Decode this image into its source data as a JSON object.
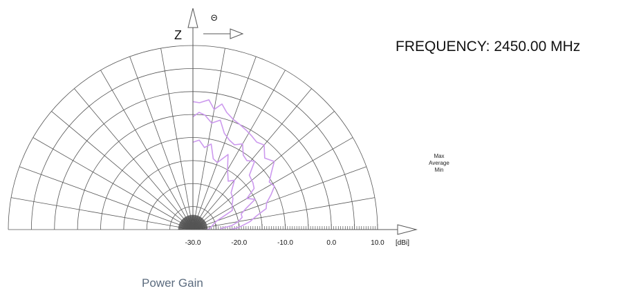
{
  "frequency_label": "FREQUENCY: 2450.00 MHz",
  "legend": [
    "Max",
    "Average",
    "Min"
  ],
  "caption": "Power Gain",
  "axis_labels": {
    "vertical": "Z",
    "angular": "Θ"
  },
  "colors": {
    "series": "#cc99ee",
    "grid": "#555555"
  },
  "chart_data": {
    "type": "line",
    "subtype": "polar-half",
    "title": "FREQUENCY: 2450.00 MHz",
    "radial_unit": "[dBi]",
    "radial_range": [
      -30,
      10
    ],
    "radial_ticks": [
      {
        "value": -30,
        "label": "-30.0"
      },
      {
        "value": -20,
        "label": "-20.0"
      },
      {
        "value": -10,
        "label": "-10.0"
      },
      {
        "value": 0,
        "label": "0.0"
      },
      {
        "value": 10,
        "label": "10.0"
      }
    ],
    "theta_range_deg": [
      0,
      90
    ],
    "series": [
      {
        "name": "Max",
        "points": [
          [
            0,
            -2.2
          ],
          [
            3,
            -2.4
          ],
          [
            7,
            -1.6
          ],
          [
            10,
            -3.5
          ],
          [
            13,
            -2.0
          ],
          [
            16,
            -3.5
          ],
          [
            20,
            -4.5
          ],
          [
            24,
            -5.0
          ],
          [
            28,
            -5.5
          ],
          [
            32,
            -6.0
          ],
          [
            36,
            -6.5
          ],
          [
            40,
            -6.0
          ],
          [
            45,
            -8.0
          ],
          [
            50,
            -7.0
          ],
          [
            54,
            -9.0
          ],
          [
            58,
            -10.5
          ],
          [
            62,
            -10.0
          ],
          [
            66,
            -11.5
          ],
          [
            70,
            -13.0
          ],
          [
            74,
            -13.5
          ],
          [
            78,
            -16.0
          ],
          [
            82,
            -17.5
          ],
          [
            86,
            -19.5
          ],
          [
            88,
            -20.5
          ],
          [
            90,
            -22.0
          ]
        ]
      },
      {
        "name": "Average",
        "points": [
          [
            0,
            -5.5
          ],
          [
            3,
            -4.5
          ],
          [
            6,
            -5.0
          ],
          [
            10,
            -6.5
          ],
          [
            14,
            -5.5
          ],
          [
            18,
            -8.0
          ],
          [
            22,
            -9.0
          ],
          [
            26,
            -9.5
          ],
          [
            30,
            -8.5
          ],
          [
            34,
            -10.5
          ],
          [
            38,
            -11.0
          ],
          [
            42,
            -10.0
          ],
          [
            46,
            -13.0
          ],
          [
            52,
            -13.5
          ],
          [
            56,
            -14.0
          ],
          [
            60,
            -16.5
          ],
          [
            64,
            -15.0
          ],
          [
            68,
            -17.5
          ],
          [
            72,
            -19.0
          ],
          [
            76,
            -19.0
          ],
          [
            80,
            -20.0
          ],
          [
            84,
            -21.5
          ],
          [
            88,
            -24.0
          ],
          [
            90,
            -24.0
          ]
        ]
      },
      {
        "name": "Min",
        "points": [
          [
            0,
            -11.0
          ],
          [
            4,
            -10.5
          ],
          [
            8,
            -12.0
          ],
          [
            12,
            -11.0
          ],
          [
            16,
            -14.0
          ],
          [
            20,
            -14.5
          ],
          [
            25,
            -12.0
          ],
          [
            30,
            -15.0
          ],
          [
            36,
            -17.0
          ],
          [
            40,
            -16.0
          ],
          [
            46,
            -18.5
          ],
          [
            52,
            -19.0
          ],
          [
            58,
            -20.0
          ],
          [
            64,
            -20.5
          ],
          [
            70,
            -24.5
          ],
          [
            76,
            -25.5
          ],
          [
            82,
            -26.0
          ],
          [
            88,
            -26.5
          ],
          [
            90,
            -27.0
          ]
        ]
      }
    ]
  }
}
